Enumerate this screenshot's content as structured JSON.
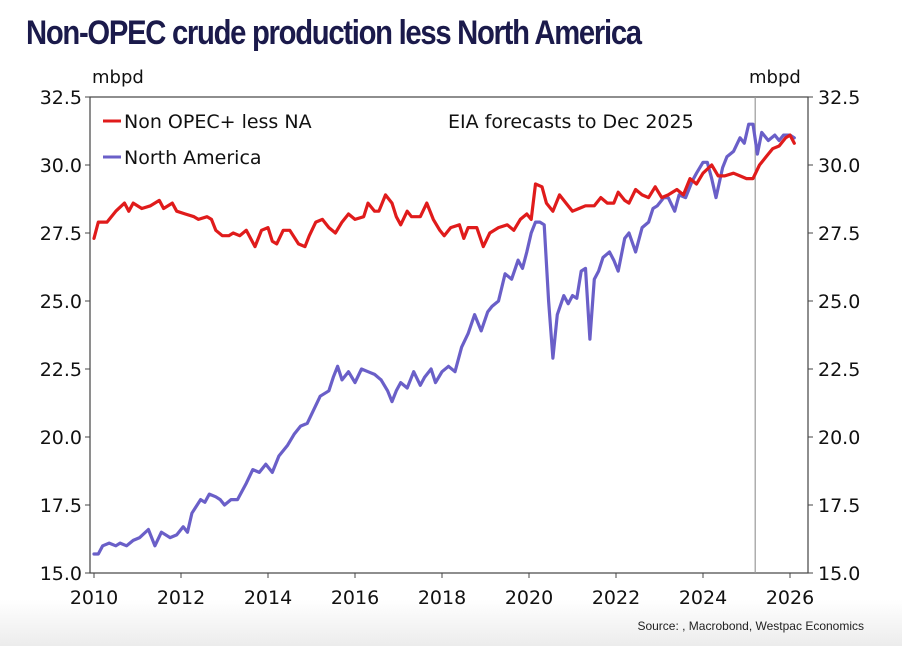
{
  "title": "Non-OPEC crude production less North America",
  "source": "Source: , Macrobond, Westpac Economics",
  "chart_data": {
    "type": "line",
    "title": "Non-OPEC crude production less North America",
    "ylabel_left": "mbpd",
    "ylabel_right": "mbpd",
    "xlabel": "",
    "ylim": [
      15.0,
      32.5
    ],
    "xlim": [
      2010,
      2026.5
    ],
    "yticks": [
      "15.0",
      "17.5",
      "20.0",
      "22.5",
      "25.0",
      "27.5",
      "30.0",
      "32.5"
    ],
    "xticks": [
      "2010",
      "2012",
      "2014",
      "2016",
      "2018",
      "2020",
      "2022",
      "2024",
      "2026"
    ],
    "annotation": "EIA forecasts to Dec 2025",
    "forecast_start": 2025.2,
    "grid": false,
    "legend_position": "top-left",
    "series": [
      {
        "name": "Non OPEC+ less NA",
        "color": "#e01b1b",
        "points": [
          [
            2010.0,
            27.3
          ],
          [
            2010.1,
            27.9
          ],
          [
            2010.3,
            27.9
          ],
          [
            2010.5,
            28.3
          ],
          [
            2010.7,
            28.6
          ],
          [
            2010.8,
            28.3
          ],
          [
            2010.9,
            28.6
          ],
          [
            2011.1,
            28.4
          ],
          [
            2011.3,
            28.5
          ],
          [
            2011.5,
            28.7
          ],
          [
            2011.6,
            28.4
          ],
          [
            2011.8,
            28.6
          ],
          [
            2011.9,
            28.3
          ],
          [
            2012.1,
            28.2
          ],
          [
            2012.3,
            28.1
          ],
          [
            2012.4,
            28.0
          ],
          [
            2012.6,
            28.1
          ],
          [
            2012.7,
            28.0
          ],
          [
            2012.8,
            27.6
          ],
          [
            2012.95,
            27.4
          ],
          [
            2013.1,
            27.4
          ],
          [
            2013.2,
            27.5
          ],
          [
            2013.35,
            27.4
          ],
          [
            2013.5,
            27.6
          ],
          [
            2013.6,
            27.3
          ],
          [
            2013.7,
            27.0
          ],
          [
            2013.85,
            27.6
          ],
          [
            2014.0,
            27.7
          ],
          [
            2014.1,
            27.2
          ],
          [
            2014.2,
            27.1
          ],
          [
            2014.35,
            27.6
          ],
          [
            2014.5,
            27.6
          ],
          [
            2014.7,
            27.1
          ],
          [
            2014.85,
            27.0
          ],
          [
            2014.95,
            27.4
          ],
          [
            2015.1,
            27.9
          ],
          [
            2015.25,
            28.0
          ],
          [
            2015.4,
            27.7
          ],
          [
            2015.55,
            27.5
          ],
          [
            2015.7,
            27.9
          ],
          [
            2015.85,
            28.2
          ],
          [
            2016.0,
            28.0
          ],
          [
            2016.2,
            28.1
          ],
          [
            2016.3,
            28.6
          ],
          [
            2016.45,
            28.3
          ],
          [
            2016.55,
            28.3
          ],
          [
            2016.7,
            28.9
          ],
          [
            2016.85,
            28.6
          ],
          [
            2016.95,
            28.1
          ],
          [
            2017.05,
            27.8
          ],
          [
            2017.2,
            28.3
          ],
          [
            2017.3,
            28.1
          ],
          [
            2017.5,
            28.1
          ],
          [
            2017.65,
            28.6
          ],
          [
            2017.8,
            28.0
          ],
          [
            2017.95,
            27.6
          ],
          [
            2018.05,
            27.4
          ],
          [
            2018.2,
            27.7
          ],
          [
            2018.4,
            27.8
          ],
          [
            2018.5,
            27.3
          ],
          [
            2018.6,
            27.7
          ],
          [
            2018.8,
            27.7
          ],
          [
            2018.95,
            27.0
          ],
          [
            2019.1,
            27.5
          ],
          [
            2019.3,
            27.7
          ],
          [
            2019.5,
            27.8
          ],
          [
            2019.65,
            27.6
          ],
          [
            2019.8,
            28.0
          ],
          [
            2019.95,
            28.2
          ],
          [
            2020.05,
            28.0
          ],
          [
            2020.15,
            29.3
          ],
          [
            2020.3,
            29.2
          ],
          [
            2020.4,
            28.6
          ],
          [
            2020.55,
            28.3
          ],
          [
            2020.7,
            28.9
          ],
          [
            2020.85,
            28.6
          ],
          [
            2021.0,
            28.3
          ],
          [
            2021.15,
            28.4
          ],
          [
            2021.3,
            28.5
          ],
          [
            2021.5,
            28.5
          ],
          [
            2021.65,
            28.8
          ],
          [
            2021.8,
            28.6
          ],
          [
            2021.95,
            28.6
          ],
          [
            2022.05,
            29.0
          ],
          [
            2022.2,
            28.7
          ],
          [
            2022.3,
            28.6
          ],
          [
            2022.45,
            29.1
          ],
          [
            2022.6,
            28.9
          ],
          [
            2022.75,
            28.8
          ],
          [
            2022.9,
            29.2
          ],
          [
            2023.05,
            28.8
          ],
          [
            2023.2,
            28.9
          ],
          [
            2023.4,
            29.1
          ],
          [
            2023.55,
            28.9
          ],
          [
            2023.7,
            29.5
          ],
          [
            2023.85,
            29.3
          ],
          [
            2024.0,
            29.7
          ],
          [
            2024.2,
            30.0
          ],
          [
            2024.35,
            29.6
          ],
          [
            2024.5,
            29.6
          ],
          [
            2024.7,
            29.7
          ],
          [
            2024.85,
            29.6
          ],
          [
            2025.0,
            29.5
          ],
          [
            2025.15,
            29.5
          ],
          [
            2025.3,
            30.0
          ],
          [
            2025.45,
            30.3
          ],
          [
            2025.6,
            30.6
          ],
          [
            2025.75,
            30.7
          ],
          [
            2025.9,
            31.0
          ],
          [
            2026.0,
            31.1
          ],
          [
            2026.1,
            30.8
          ]
        ]
      },
      {
        "name": "North America",
        "color": "#6a5fc8",
        "points": [
          [
            2010.0,
            15.7
          ],
          [
            2010.1,
            15.7
          ],
          [
            2010.2,
            16.0
          ],
          [
            2010.35,
            16.1
          ],
          [
            2010.5,
            16.0
          ],
          [
            2010.6,
            16.1
          ],
          [
            2010.75,
            16.0
          ],
          [
            2010.9,
            16.2
          ],
          [
            2011.05,
            16.3
          ],
          [
            2011.25,
            16.6
          ],
          [
            2011.4,
            16.0
          ],
          [
            2011.55,
            16.5
          ],
          [
            2011.75,
            16.3
          ],
          [
            2011.9,
            16.4
          ],
          [
            2012.05,
            16.7
          ],
          [
            2012.15,
            16.5
          ],
          [
            2012.25,
            17.2
          ],
          [
            2012.45,
            17.7
          ],
          [
            2012.55,
            17.6
          ],
          [
            2012.65,
            17.9
          ],
          [
            2012.8,
            17.8
          ],
          [
            2012.9,
            17.7
          ],
          [
            2013.0,
            17.5
          ],
          [
            2013.15,
            17.7
          ],
          [
            2013.3,
            17.7
          ],
          [
            2013.5,
            18.3
          ],
          [
            2013.65,
            18.8
          ],
          [
            2013.8,
            18.7
          ],
          [
            2013.95,
            19.0
          ],
          [
            2014.1,
            18.7
          ],
          [
            2014.25,
            19.3
          ],
          [
            2014.45,
            19.7
          ],
          [
            2014.6,
            20.1
          ],
          [
            2014.75,
            20.4
          ],
          [
            2014.9,
            20.5
          ],
          [
            2015.05,
            21.0
          ],
          [
            2015.2,
            21.5
          ],
          [
            2015.4,
            21.7
          ],
          [
            2015.5,
            22.2
          ],
          [
            2015.6,
            22.6
          ],
          [
            2015.7,
            22.1
          ],
          [
            2015.85,
            22.4
          ],
          [
            2016.0,
            22.0
          ],
          [
            2016.15,
            22.5
          ],
          [
            2016.3,
            22.4
          ],
          [
            2016.45,
            22.3
          ],
          [
            2016.6,
            22.1
          ],
          [
            2016.75,
            21.7
          ],
          [
            2016.85,
            21.3
          ],
          [
            2016.95,
            21.7
          ],
          [
            2017.05,
            22.0
          ],
          [
            2017.2,
            21.8
          ],
          [
            2017.35,
            22.4
          ],
          [
            2017.5,
            21.9
          ],
          [
            2017.6,
            22.2
          ],
          [
            2017.75,
            22.5
          ],
          [
            2017.85,
            22.0
          ],
          [
            2018.0,
            22.4
          ],
          [
            2018.15,
            22.6
          ],
          [
            2018.3,
            22.4
          ],
          [
            2018.45,
            23.3
          ],
          [
            2018.6,
            23.8
          ],
          [
            2018.75,
            24.5
          ],
          [
            2018.9,
            23.9
          ],
          [
            2019.05,
            24.6
          ],
          [
            2019.15,
            24.8
          ],
          [
            2019.3,
            25.0
          ],
          [
            2019.45,
            26.0
          ],
          [
            2019.6,
            25.8
          ],
          [
            2019.75,
            26.5
          ],
          [
            2019.85,
            26.2
          ],
          [
            2019.95,
            26.8
          ],
          [
            2020.05,
            27.5
          ],
          [
            2020.15,
            27.9
          ],
          [
            2020.25,
            27.9
          ],
          [
            2020.35,
            27.8
          ],
          [
            2020.45,
            25.0
          ],
          [
            2020.55,
            22.9
          ],
          [
            2020.65,
            24.5
          ],
          [
            2020.8,
            25.2
          ],
          [
            2020.9,
            24.9
          ],
          [
            2021.0,
            25.2
          ],
          [
            2021.1,
            25.1
          ],
          [
            2021.2,
            26.1
          ],
          [
            2021.3,
            26.2
          ],
          [
            2021.4,
            23.6
          ],
          [
            2021.5,
            25.8
          ],
          [
            2021.6,
            26.1
          ],
          [
            2021.7,
            26.6
          ],
          [
            2021.85,
            26.8
          ],
          [
            2021.95,
            26.5
          ],
          [
            2022.05,
            26.1
          ],
          [
            2022.2,
            27.3
          ],
          [
            2022.3,
            27.5
          ],
          [
            2022.45,
            26.8
          ],
          [
            2022.6,
            27.7
          ],
          [
            2022.75,
            27.9
          ],
          [
            2022.85,
            28.4
          ],
          [
            2022.95,
            28.5
          ],
          [
            2023.1,
            28.8
          ],
          [
            2023.2,
            28.8
          ],
          [
            2023.35,
            28.3
          ],
          [
            2023.45,
            28.9
          ],
          [
            2023.6,
            28.8
          ],
          [
            2023.75,
            29.4
          ],
          [
            2023.85,
            29.7
          ],
          [
            2024.0,
            30.1
          ],
          [
            2024.1,
            30.1
          ],
          [
            2024.2,
            29.5
          ],
          [
            2024.3,
            28.8
          ],
          [
            2024.45,
            29.9
          ],
          [
            2024.55,
            30.3
          ],
          [
            2024.7,
            30.5
          ],
          [
            2024.85,
            31.0
          ],
          [
            2024.95,
            30.8
          ],
          [
            2025.05,
            31.5
          ],
          [
            2025.15,
            31.5
          ],
          [
            2025.25,
            30.4
          ],
          [
            2025.35,
            31.2
          ],
          [
            2025.5,
            30.9
          ],
          [
            2025.65,
            31.1
          ],
          [
            2025.75,
            30.9
          ],
          [
            2025.85,
            31.1
          ],
          [
            2026.0,
            31.1
          ],
          [
            2026.1,
            31.0
          ]
        ]
      }
    ]
  }
}
